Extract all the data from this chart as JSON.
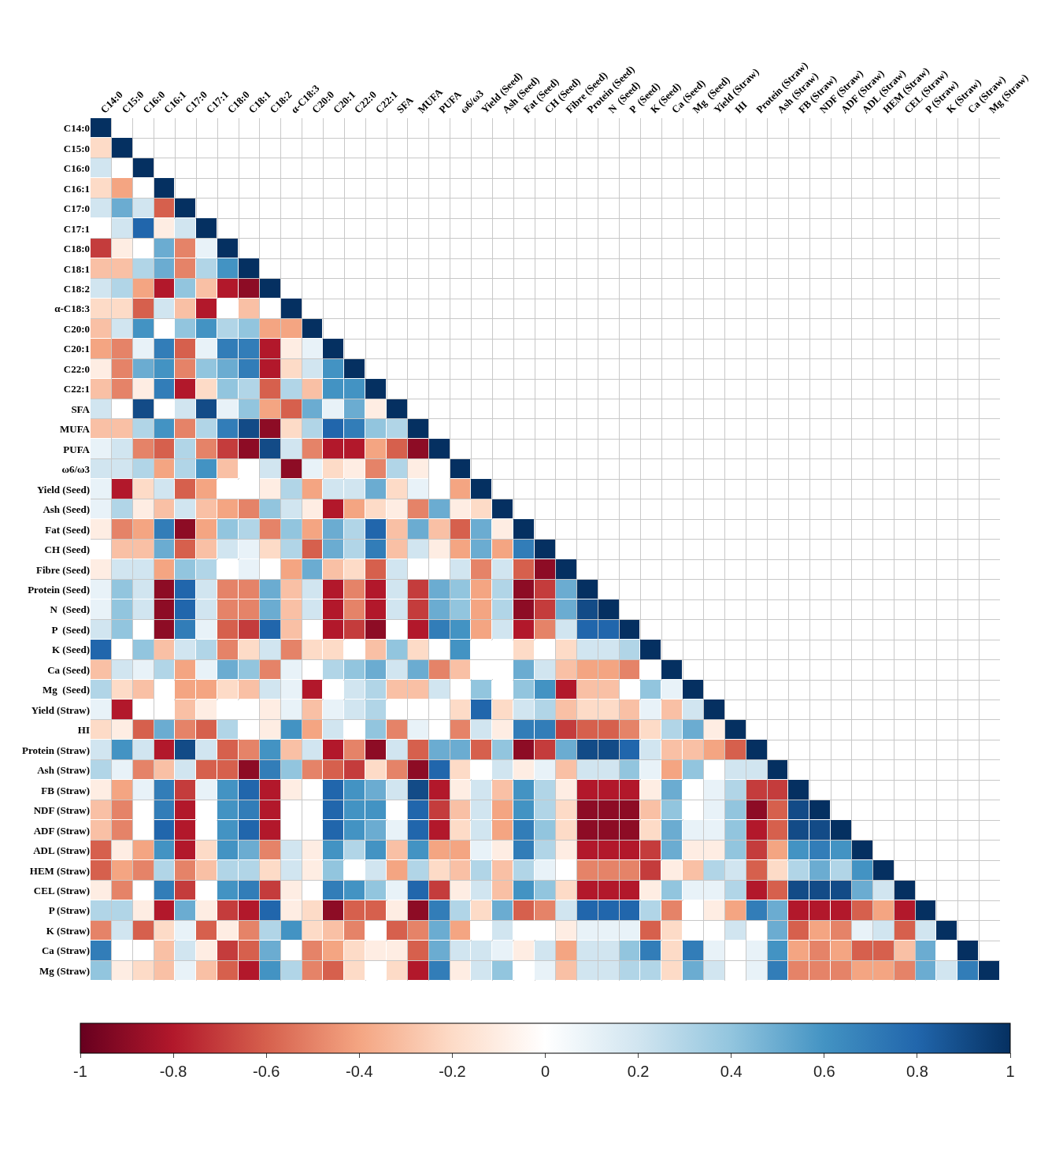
{
  "chart_data": {
    "type": "heatmap",
    "categories": [
      "C14:0",
      "C15:0",
      "C16:0",
      "C16:1",
      "C17:0",
      "C17:1",
      "C18:0",
      "C18:1",
      "C18:2",
      "α-C18:3",
      "C20:0",
      "C20:1",
      "C22:0",
      "C22:1",
      "SFA",
      "MUFA",
      "PUFA",
      "ω6/ω3",
      "Yield (Seed)",
      "Ash (Seed)",
      "Fat (Seed)",
      "CH (Seed)",
      "Fibre (Seed)",
      "Protein (Seed)",
      "N  (Seed)",
      "P  (Seed)",
      "K (Seed)",
      "Ca (Seed)",
      "Mg  (Seed)",
      "Yield (Straw)",
      "HI",
      "Protein (Straw)",
      "Ash (Straw)",
      "FB (Straw)",
      "NDF (Straw)",
      "ADF (Straw)",
      "ADL (Straw)",
      "HEM (Straw)",
      "CEL (Straw)",
      "P (Straw)",
      "K (Straw)",
      "Ca (Straw)",
      "Mg (Straw)"
    ],
    "y_categories": [
      "C14:0",
      "C15:0",
      "C16:0",
      "C16:1",
      "C17:0",
      "C17:1",
      "C18:0",
      "C18:1",
      "C18:2",
      "α-C18:3",
      "C20:0",
      "C20:1",
      "C22:0",
      "C22:1",
      "SFA",
      "MUFA",
      "PUFA",
      "ω6/ω3",
      "Yield (Seed)",
      "Ash (Seed)",
      "Fat (Seed)",
      "CH (Seed)",
      "Fibre (Seed)",
      "Protein (Seed)",
      "N  (Seed)",
      "P  (Seed)",
      "K (Seed)",
      "Ca (Seed)",
      "Mg  (Seed)",
      "Yield (Straw)",
      "HI",
      "Protein (Straw)",
      "Ash (Straw)",
      "FB (Straw)",
      "NDF (Straw)",
      "ADF (Straw)",
      "ADL (Straw)",
      "HEM (Straw)",
      "CEL (Straw)",
      "P (Straw)",
      "K (Straw)",
      "Ca (Straw)",
      "Mg (Straw)"
    ],
    "cells": [
      [
        1,
        null,
        null,
        null,
        null,
        null,
        null,
        null,
        null,
        null,
        null,
        null,
        null,
        null,
        null,
        null,
        null,
        null,
        null,
        null,
        null,
        null,
        null,
        null,
        null,
        null,
        null,
        null,
        null,
        null,
        null,
        null,
        null,
        null,
        null,
        null,
        null,
        null,
        null,
        null,
        null,
        null,
        null
      ],
      [
        -0.2,
        1,
        null,
        null,
        null,
        null,
        null,
        null,
        null,
        null,
        null,
        null,
        null,
        null,
        null,
        null,
        null,
        null,
        null,
        null,
        null,
        null,
        null,
        null,
        null,
        null,
        null,
        null,
        null,
        null,
        null,
        null,
        null,
        null,
        null,
        null,
        null,
        null,
        null,
        null,
        null,
        null,
        null
      ],
      [
        0.2,
        0,
        1,
        null,
        null,
        null,
        null,
        null,
        null,
        null,
        null,
        null,
        null,
        null,
        null,
        null,
        null,
        null,
        null,
        null,
        null,
        null,
        null,
        null,
        null,
        null,
        null,
        null,
        null,
        null,
        null,
        null,
        null,
        null,
        null,
        null,
        null,
        null,
        null,
        null,
        null,
        null,
        null
      ],
      [
        -0.2,
        -0.4,
        0,
        1,
        null,
        null,
        null,
        null,
        null,
        null,
        null,
        null,
        null,
        null,
        null,
        null,
        null,
        null,
        null,
        null,
        null,
        null,
        null,
        null,
        null,
        null,
        null,
        null,
        null,
        null,
        null,
        null,
        null,
        null,
        null,
        null,
        null,
        null,
        null,
        null,
        null,
        null,
        null
      ],
      [
        0.2,
        0.5,
        0.2,
        -0.6,
        1,
        null,
        null,
        null,
        null,
        null,
        null,
        null,
        null,
        null,
        null,
        null,
        null,
        null,
        null,
        null,
        null,
        null,
        null,
        null,
        null,
        null,
        null,
        null,
        null,
        null,
        null,
        null,
        null,
        null,
        null,
        null,
        null,
        null,
        null,
        null,
        null,
        null,
        null
      ],
      [
        0,
        0.2,
        0.8,
        -0.1,
        0.2,
        1,
        null,
        null,
        null,
        null,
        null,
        null,
        null,
        null,
        null,
        null,
        null,
        null,
        null,
        null,
        null,
        null,
        null,
        null,
        null,
        null,
        null,
        null,
        null,
        null,
        null,
        null,
        null,
        null,
        null,
        null,
        null,
        null,
        null,
        null,
        null,
        null,
        null
      ],
      [
        -0.7,
        -0.1,
        0,
        0.5,
        -0.5,
        0.1,
        1,
        null,
        null,
        null,
        null,
        null,
        null,
        null,
        null,
        null,
        null,
        null,
        null,
        null,
        null,
        null,
        null,
        null,
        null,
        null,
        null,
        null,
        null,
        null,
        null,
        null,
        null,
        null,
        null,
        null,
        null,
        null,
        null,
        null,
        null,
        null,
        null
      ],
      [
        -0.3,
        -0.3,
        0.3,
        0.5,
        -0.5,
        0.3,
        0.6,
        1,
        null,
        null,
        null,
        null,
        null,
        null,
        null,
        null,
        null,
        null,
        null,
        null,
        null,
        null,
        null,
        null,
        null,
        null,
        null,
        null,
        null,
        null,
        null,
        null,
        null,
        null,
        null,
        null,
        null,
        null,
        null,
        null,
        null,
        null,
        null
      ],
      [
        0.2,
        0.3,
        -0.4,
        -0.8,
        0.4,
        -0.3,
        -0.8,
        -0.9,
        1,
        null,
        null,
        null,
        null,
        null,
        null,
        null,
        null,
        null,
        null,
        null,
        null,
        null,
        null,
        null,
        null,
        null,
        null,
        null,
        null,
        null,
        null,
        null,
        null,
        null,
        null,
        null,
        null,
        null,
        null,
        null,
        null,
        null,
        null
      ],
      [
        -0.2,
        -0.2,
        -0.6,
        0.2,
        -0.3,
        -0.8,
        0,
        -0.3,
        0,
        1,
        null,
        null,
        null,
        null,
        null,
        null,
        null,
        null,
        null,
        null,
        null,
        null,
        null,
        null,
        null,
        null,
        null,
        null,
        null,
        null,
        null,
        null,
        null,
        null,
        null,
        null,
        null,
        null,
        null,
        null,
        null,
        null,
        null
      ],
      [
        -0.3,
        0.2,
        0.6,
        0,
        0.4,
        0.6,
        0.3,
        0.4,
        -0.4,
        -0.4,
        1,
        null,
        null,
        null,
        null,
        null,
        null,
        null,
        null,
        null,
        null,
        null,
        null,
        null,
        null,
        null,
        null,
        null,
        null,
        null,
        null,
        null,
        null,
        null,
        null,
        null,
        null,
        null,
        null,
        null,
        null,
        null,
        null
      ],
      [
        -0.4,
        -0.5,
        0.1,
        0.7,
        -0.6,
        0.1,
        0.7,
        0.7,
        -0.8,
        -0.1,
        0.1,
        1,
        null,
        null,
        null,
        null,
        null,
        null,
        null,
        null,
        null,
        null,
        null,
        null,
        null,
        null,
        null,
        null,
        null,
        null,
        null,
        null,
        null,
        null,
        null,
        null,
        null,
        null,
        null,
        null,
        null,
        null,
        null
      ],
      [
        -0.1,
        -0.5,
        0.5,
        0.6,
        -0.5,
        0.4,
        0.5,
        0.7,
        -0.8,
        -0.2,
        0.2,
        0.6,
        1,
        null,
        null,
        null,
        null,
        null,
        null,
        null,
        null,
        null,
        null,
        null,
        null,
        null,
        null,
        null,
        null,
        null,
        null,
        null,
        null,
        null,
        null,
        null,
        null,
        null,
        null,
        null,
        null,
        null,
        null
      ],
      [
        -0.3,
        -0.5,
        -0.1,
        0.7,
        -0.8,
        -0.2,
        0.4,
        0.3,
        -0.6,
        0.3,
        -0.3,
        0.6,
        0.6,
        1,
        null,
        null,
        null,
        null,
        null,
        null,
        null,
        null,
        null,
        null,
        null,
        null,
        null,
        null,
        null,
        null,
        null,
        null,
        null,
        null,
        null,
        null,
        null,
        null,
        null,
        null,
        null,
        null,
        null
      ],
      [
        0.2,
        0,
        0.9,
        0,
        0.2,
        0.9,
        0.1,
        0.4,
        -0.4,
        -0.6,
        0.5,
        0.1,
        0.5,
        -0.1,
        1,
        null,
        null,
        null,
        null,
        null,
        null,
        null,
        null,
        null,
        null,
        null,
        null,
        null,
        null,
        null,
        null,
        null,
        null,
        null,
        null,
        null,
        null,
        null,
        null,
        null,
        null,
        null,
        null
      ],
      [
        -0.3,
        -0.3,
        0.3,
        0.6,
        -0.5,
        0.3,
        0.7,
        0.9,
        -0.9,
        -0.2,
        0.3,
        0.8,
        0.7,
        0.4,
        0.3,
        1,
        null,
        null,
        null,
        null,
        null,
        null,
        null,
        null,
        null,
        null,
        null,
        null,
        null,
        null,
        null,
        null,
        null,
        null,
        null,
        null,
        null,
        null,
        null,
        null,
        null,
        null,
        null
      ],
      [
        0.1,
        0.2,
        -0.5,
        -0.6,
        0.3,
        -0.5,
        -0.7,
        -0.9,
        0.9,
        0.2,
        -0.5,
        -0.8,
        -0.8,
        -0.4,
        -0.6,
        -0.9,
        1,
        null,
        null,
        null,
        null,
        null,
        null,
        null,
        null,
        null,
        null,
        null,
        null,
        null,
        null,
        null,
        null,
        null,
        null,
        null,
        null,
        null,
        null,
        null,
        null,
        null,
        null
      ],
      [
        0.2,
        0.2,
        0.3,
        -0.4,
        0.3,
        0.6,
        -0.3,
        0,
        0.2,
        -0.9,
        0.1,
        -0.2,
        -0.1,
        -0.5,
        0.3,
        -0.1,
        0,
        1,
        null,
        null,
        null,
        null,
        null,
        null,
        null,
        null,
        null,
        null,
        null,
        null,
        null,
        null,
        null,
        null,
        null,
        null,
        null,
        null,
        null,
        null,
        null,
        null,
        null
      ],
      [
        0.1,
        -0.8,
        -0.2,
        0.2,
        -0.6,
        -0.4,
        0,
        0,
        -0.1,
        0.3,
        -0.4,
        0.2,
        0.2,
        0.5,
        -0.2,
        0.1,
        0,
        -0.4,
        1,
        null,
        null,
        null,
        null,
        null,
        null,
        null,
        null,
        null,
        null,
        null,
        null,
        null,
        null,
        null,
        null,
        null,
        null,
        null,
        null,
        null,
        null,
        null,
        null
      ],
      [
        0.1,
        0.3,
        -0.1,
        -0.3,
        0.2,
        -0.3,
        -0.4,
        -0.5,
        0.4,
        0.2,
        -0.1,
        -0.8,
        -0.4,
        -0.2,
        -0.1,
        -0.5,
        0.5,
        -0.1,
        -0.2,
        1,
        null,
        null,
        null,
        null,
        null,
        null,
        null,
        null,
        null,
        null,
        null,
        null,
        null,
        null,
        null,
        null,
        null,
        null,
        null,
        null,
        null,
        null,
        null
      ],
      [
        -0.1,
        -0.5,
        -0.4,
        0.7,
        -0.9,
        -0.4,
        0.4,
        0.3,
        -0.5,
        0.4,
        -0.4,
        0.5,
        0.3,
        0.8,
        -0.3,
        0.5,
        -0.3,
        -0.6,
        0.5,
        -0.1,
        1,
        null,
        null,
        null,
        null,
        null,
        null,
        null,
        null,
        null,
        null,
        null,
        null,
        null,
        null,
        null,
        null,
        null,
        null,
        null,
        null,
        null,
        null
      ],
      [
        0,
        -0.3,
        -0.3,
        0.5,
        -0.6,
        -0.3,
        0.2,
        0.1,
        -0.2,
        0.3,
        -0.6,
        0.5,
        0.3,
        0.7,
        -0.3,
        0.2,
        -0.1,
        -0.4,
        0.5,
        -0.4,
        0.7,
        1,
        null,
        null,
        null,
        null,
        null,
        null,
        null,
        null,
        null,
        null,
        null,
        null,
        null,
        null,
        null,
        null,
        null,
        null,
        null,
        null,
        null
      ],
      [
        -0.1,
        0.2,
        0.2,
        -0.4,
        0.4,
        0.3,
        0,
        0.1,
        0,
        -0.4,
        0.5,
        -0.3,
        -0.2,
        -0.6,
        0.2,
        0,
        0,
        0.2,
        -0.5,
        0.2,
        -0.6,
        -0.9,
        1,
        null,
        null,
        null,
        null,
        null,
        null,
        null,
        null,
        null,
        null,
        null,
        null,
        null,
        null,
        null,
        null,
        null,
        null,
        null,
        null
      ],
      [
        0.1,
        0.4,
        0.2,
        -0.9,
        0.8,
        0.2,
        -0.5,
        -0.5,
        0.5,
        -0.3,
        0.2,
        -0.8,
        -0.5,
        -0.8,
        0.2,
        -0.7,
        0.5,
        0.4,
        -0.4,
        0.3,
        -0.9,
        -0.7,
        0.5,
        1,
        null,
        null,
        null,
        null,
        null,
        null,
        null,
        null,
        null,
        null,
        null,
        null,
        null,
        null,
        null,
        null,
        null,
        null,
        null
      ],
      [
        0.1,
        0.4,
        0.2,
        -0.9,
        0.8,
        0.2,
        -0.5,
        -0.5,
        0.5,
        -0.3,
        0.2,
        -0.8,
        -0.5,
        -0.8,
        0.2,
        -0.7,
        0.5,
        0.4,
        -0.4,
        0.3,
        -0.9,
        -0.7,
        0.5,
        0.9,
        1,
        null,
        null,
        null,
        null,
        null,
        null,
        null,
        null,
        null,
        null,
        null,
        null,
        null,
        null,
        null,
        null,
        null,
        null
      ],
      [
        0.2,
        0.4,
        0,
        -0.9,
        0.7,
        0.1,
        -0.6,
        -0.7,
        0.8,
        -0.3,
        0,
        -0.8,
        -0.7,
        -0.9,
        0,
        -0.8,
        0.7,
        0.6,
        -0.4,
        0.2,
        -0.8,
        -0.5,
        0.2,
        0.8,
        0.8,
        1,
        null,
        null,
        null,
        null,
        null,
        null,
        null,
        null,
        null,
        null,
        null,
        null,
        null,
        null,
        null,
        null,
        null
      ],
      [
        0.8,
        0,
        0.4,
        -0.3,
        0.2,
        0.3,
        -0.5,
        -0.2,
        0.2,
        -0.5,
        -0.2,
        -0.2,
        0,
        -0.3,
        0.4,
        -0.2,
        0,
        0.6,
        0,
        0,
        -0.2,
        0,
        -0.2,
        0.2,
        0.2,
        0.3,
        1,
        null,
        null,
        null,
        null,
        null,
        null,
        null,
        null,
        null,
        null,
        null,
        null,
        null,
        null,
        null,
        null
      ],
      [
        -0.3,
        0.2,
        0.1,
        0.3,
        -0.4,
        0.1,
        0.5,
        0.4,
        -0.5,
        0.1,
        0,
        0.3,
        0.4,
        0.5,
        0.2,
        0.5,
        -0.5,
        -0.3,
        0,
        0,
        0.5,
        0.2,
        -0.3,
        -0.4,
        -0.4,
        -0.5,
        0,
        1,
        null,
        null,
        null,
        null,
        null,
        null,
        null,
        null,
        null,
        null,
        null,
        null,
        null,
        null,
        null
      ],
      [
        0.3,
        -0.2,
        -0.3,
        0,
        -0.4,
        -0.4,
        -0.2,
        -0.3,
        0.2,
        0.1,
        -0.8,
        0,
        0.2,
        0.3,
        -0.3,
        -0.3,
        0.2,
        0,
        0.4,
        0,
        0.4,
        0.6,
        -0.8,
        -0.3,
        -0.3,
        0,
        0.4,
        0.1,
        1,
        null,
        null,
        null,
        null,
        null,
        null,
        null,
        null,
        null,
        null,
        null,
        null,
        null,
        null
      ],
      [
        0.1,
        -0.8,
        0,
        0,
        -0.3,
        -0.1,
        0,
        0,
        -0.1,
        0.1,
        -0.3,
        0.1,
        0.2,
        0.3,
        0,
        0,
        0,
        -0.2,
        0.8,
        -0.2,
        0.2,
        0.3,
        -0.3,
        -0.2,
        -0.2,
        -0.3,
        0.1,
        -0.3,
        0.2,
        1,
        null,
        null,
        null,
        null,
        null,
        null,
        null,
        null,
        null,
        null,
        null,
        null,
        null
      ],
      [
        -0.2,
        -0.1,
        -0.6,
        0.5,
        -0.5,
        -0.6,
        0.3,
        0,
        -0.1,
        0.6,
        -0.4,
        0.2,
        0,
        0.4,
        -0.5,
        0.1,
        0,
        -0.5,
        0.2,
        -0.1,
        0.7,
        0.7,
        -0.7,
        -0.6,
        -0.6,
        -0.5,
        -0.2,
        0.3,
        0.5,
        -0.1,
        1,
        null,
        null,
        null,
        null,
        null,
        null,
        null,
        null,
        null,
        null,
        null,
        null
      ],
      [
        0.2,
        0.6,
        0.2,
        -0.8,
        0.9,
        0.2,
        -0.6,
        -0.5,
        0.6,
        -0.3,
        0.2,
        -0.8,
        -0.5,
        -0.9,
        0.2,
        -0.6,
        0.5,
        0.5,
        -0.6,
        0.4,
        -0.9,
        -0.7,
        0.5,
        0.9,
        0.9,
        0.8,
        0.2,
        -0.3,
        -0.3,
        -0.4,
        -0.6,
        1,
        null,
        null,
        null,
        null,
        null,
        null,
        null,
        null,
        null,
        null,
        null
      ],
      [
        0.3,
        0.1,
        -0.5,
        -0.3,
        0.2,
        -0.6,
        -0.6,
        -0.9,
        0.7,
        0.4,
        -0.5,
        -0.6,
        -0.7,
        -0.2,
        -0.5,
        -0.9,
        0.8,
        -0.2,
        0,
        0.2,
        -0.1,
        0.1,
        -0.3,
        0.2,
        0.2,
        0.4,
        0.1,
        -0.4,
        0.4,
        0,
        0.2,
        0.2,
        1,
        null,
        null,
        null,
        null,
        null,
        null,
        null,
        null,
        null,
        null
      ],
      [
        -0.1,
        -0.4,
        0.1,
        0.7,
        -0.7,
        0.1,
        0.6,
        0.8,
        -0.8,
        -0.1,
        0,
        0.8,
        0.6,
        0.5,
        0.2,
        0.9,
        -0.8,
        -0.1,
        0.2,
        -0.3,
        0.6,
        0.3,
        -0.1,
        -0.8,
        -0.8,
        -0.8,
        -0.1,
        0.5,
        0,
        0.1,
        0.3,
        -0.7,
        -0.7,
        1,
        null,
        null,
        null,
        null,
        null,
        null,
        null,
        null,
        null
      ],
      [
        -0.3,
        -0.5,
        0,
        0.7,
        -0.8,
        0,
        0.6,
        0.7,
        -0.8,
        0,
        0,
        0.8,
        0.6,
        0.6,
        0,
        0.8,
        -0.7,
        -0.3,
        0.2,
        -0.4,
        0.6,
        0.3,
        -0.2,
        -0.9,
        -0.9,
        -0.9,
        -0.3,
        0.4,
        0,
        0.1,
        0.4,
        -0.9,
        -0.6,
        0.9,
        1,
        null,
        null,
        null,
        null,
        null,
        null,
        null,
        null
      ],
      [
        -0.3,
        -0.5,
        0,
        0.8,
        -0.8,
        0,
        0.6,
        0.8,
        -0.8,
        0,
        0,
        0.8,
        0.6,
        0.5,
        0.1,
        0.8,
        -0.8,
        -0.2,
        0.2,
        -0.4,
        0.7,
        0.4,
        -0.2,
        -0.9,
        -0.9,
        -0.9,
        -0.2,
        0.5,
        0.1,
        0.1,
        0.4,
        -0.8,
        -0.6,
        0.9,
        0.9,
        1,
        null,
        null,
        null,
        null,
        null,
        null,
        null
      ],
      [
        -0.6,
        -0.1,
        -0.4,
        0.6,
        -0.8,
        -0.2,
        0.6,
        0.5,
        -0.5,
        0.2,
        -0.1,
        0.6,
        0.3,
        0.6,
        -0.3,
        0.6,
        -0.4,
        -0.4,
        0.1,
        -0.1,
        0.7,
        0.3,
        -0.1,
        -0.8,
        -0.8,
        -0.8,
        -0.7,
        0.5,
        -0.1,
        -0.1,
        0.4,
        -0.7,
        -0.4,
        0.6,
        0.7,
        0.6,
        1,
        null,
        null,
        null,
        null,
        null,
        null
      ],
      [
        -0.6,
        -0.4,
        -0.5,
        0.3,
        -0.5,
        -0.3,
        0.3,
        0.3,
        -0.2,
        0.2,
        -0.1,
        0.4,
        0,
        0.2,
        -0.4,
        0.3,
        -0.2,
        -0.3,
        0.3,
        -0.3,
        0.3,
        0.1,
        0,
        -0.5,
        -0.5,
        -0.5,
        -0.7,
        -0.1,
        -0.3,
        0.3,
        0.2,
        -0.6,
        -0.2,
        0.3,
        0.5,
        0.3,
        0.6,
        1,
        null,
        null,
        null,
        null,
        null
      ],
      [
        -0.1,
        -0.5,
        0,
        0.7,
        -0.7,
        0,
        0.6,
        0.7,
        -0.7,
        -0.1,
        0,
        0.7,
        0.6,
        0.4,
        0.1,
        0.8,
        -0.7,
        -0.1,
        0.2,
        -0.3,
        0.6,
        0.4,
        -0.2,
        -0.8,
        -0.8,
        -0.8,
        -0.1,
        0.4,
        0.1,
        0.1,
        0.3,
        -0.8,
        -0.6,
        0.9,
        0.9,
        0.9,
        0.5,
        0.2,
        1,
        null,
        null,
        null,
        null
      ],
      [
        0.3,
        0.3,
        -0.1,
        -0.8,
        0.5,
        -0.1,
        -0.7,
        -0.8,
        0.8,
        -0.1,
        -0.2,
        -0.9,
        -0.6,
        -0.6,
        -0.1,
        -0.9,
        0.7,
        0.3,
        -0.2,
        0.5,
        -0.6,
        -0.5,
        0.2,
        0.8,
        0.8,
        0.8,
        0.3,
        -0.5,
        0,
        -0.1,
        -0.4,
        0.7,
        0.5,
        -0.8,
        -0.8,
        -0.8,
        -0.6,
        -0.4,
        -0.8,
        1,
        null,
        null,
        null
      ],
      [
        -0.5,
        0.2,
        -0.6,
        -0.2,
        0.1,
        -0.6,
        -0.1,
        -0.5,
        0.3,
        0.6,
        -0.2,
        -0.3,
        -0.5,
        0,
        -0.6,
        -0.5,
        0.5,
        -0.4,
        0,
        0.2,
        0,
        0,
        -0.1,
        0.1,
        0.1,
        0.1,
        -0.6,
        -0.2,
        0,
        0,
        0.2,
        0,
        0.5,
        -0.6,
        -0.4,
        -0.5,
        0.1,
        0.2,
        -0.6,
        0.2,
        1,
        null,
        null
      ],
      [
        0.7,
        0,
        0,
        -0.3,
        0.2,
        -0.1,
        -0.7,
        -0.6,
        0.5,
        0,
        -0.5,
        -0.4,
        -0.2,
        -0.1,
        -0.1,
        -0.6,
        0.5,
        0.2,
        0.2,
        0.1,
        -0.1,
        0.2,
        -0.4,
        0.2,
        0.2,
        0.4,
        0.7,
        -0.2,
        0.7,
        0.1,
        0,
        0.1,
        0.6,
        -0.4,
        -0.5,
        -0.4,
        -0.6,
        -0.6,
        -0.3,
        0.5,
        0,
        1,
        null
      ],
      [
        0.4,
        -0.1,
        -0.2,
        -0.3,
        0.1,
        -0.3,
        -0.6,
        -0.8,
        0.6,
        0.3,
        -0.5,
        -0.6,
        -0.2,
        0,
        -0.2,
        -0.8,
        0.7,
        -0.1,
        0.2,
        0.4,
        0,
        0.1,
        -0.3,
        0.2,
        0.2,
        0.3,
        0.3,
        -0.2,
        0.5,
        0.2,
        0,
        0.1,
        0.7,
        -0.5,
        -0.5,
        -0.5,
        -0.4,
        -0.4,
        -0.5,
        0.5,
        0.2,
        0.7,
        1
      ]
    ],
    "grid": true,
    "clim": [
      -1,
      1
    ],
    "cticks": [
      -1,
      -0.8,
      -0.6,
      -0.4,
      -0.2,
      0,
      0.2,
      0.4,
      0.6,
      0.8,
      1
    ]
  }
}
